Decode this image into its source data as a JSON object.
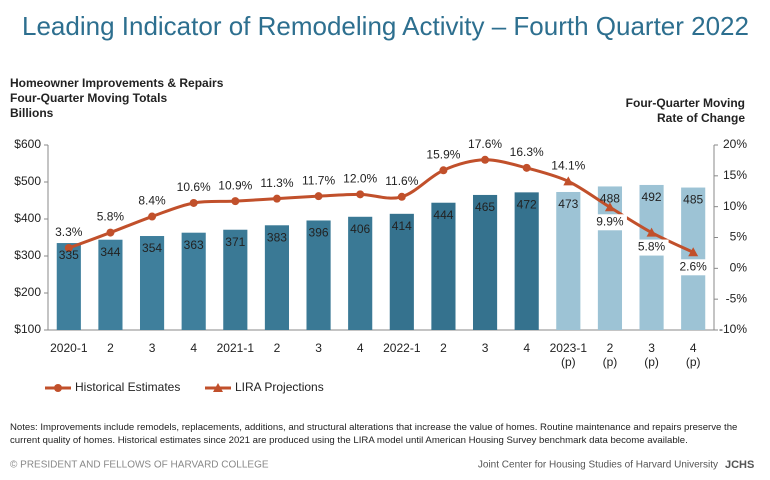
{
  "chart_data": {
    "type": "bar-line",
    "title": "Leading Indicator of Remodeling Activity – Fourth Quarter 2022",
    "ylabel": [
      "Homeowner Improvements & Repairs",
      "Four-Quarter Moving Totals",
      "Billions"
    ],
    "y2label": [
      "Four-Quarter Moving",
      "Rate of Change"
    ],
    "categories": [
      "2020-1",
      "2",
      "3",
      "4",
      "2021-1",
      "2",
      "3",
      "4",
      "2022-1",
      "2",
      "3",
      "4",
      "2023-1\n(p)",
      "2\n(p)",
      "3\n(p)",
      "4\n(p)"
    ],
    "bars": {
      "values": [
        335,
        344,
        354,
        363,
        371,
        383,
        396,
        406,
        414,
        444,
        465,
        472,
        473,
        488,
        492,
        485
      ],
      "colors": [
        "#3f7f9c",
        "#3f7f9c",
        "#3f7f9c",
        "#3f7f9c",
        "#3a7995",
        "#3a7995",
        "#3a7995",
        "#3a7995",
        "#35728e",
        "#35728e",
        "#35728e",
        "#35728e",
        "#9dc3d5",
        "#9dc3d5",
        "#9dc3d5",
        "#9dc3d5"
      ]
    },
    "series": [
      {
        "name": "Historical Estimates",
        "color": "#c1502b",
        "marker": "circle",
        "axis": "y2",
        "values": [
          3.3,
          5.8,
          8.4,
          10.6,
          10.9,
          11.3,
          11.7,
          12.0,
          11.6,
          15.9,
          17.6,
          16.3,
          null,
          null,
          null,
          null
        ],
        "value_labels": [
          "3.3%",
          "5.8%",
          "8.4%",
          "10.6%",
          "10.9%",
          "11.3%",
          "11.7%",
          "12.0%",
          "11.6%",
          "15.9%",
          "17.6%",
          "16.3%",
          null,
          null,
          null,
          null
        ]
      },
      {
        "name": "LIRA Projections",
        "color": "#c1502b",
        "marker": "triangle",
        "axis": "y2",
        "values": [
          null,
          null,
          null,
          null,
          null,
          null,
          null,
          null,
          null,
          null,
          null,
          null,
          14.1,
          9.9,
          5.8,
          2.6
        ],
        "value_labels": [
          null,
          null,
          null,
          null,
          null,
          null,
          null,
          null,
          null,
          null,
          null,
          null,
          "14.1%",
          "9.9%",
          "5.8%",
          "2.6%"
        ]
      }
    ],
    "ylim": [
      100,
      600
    ],
    "yticks": [
      {
        "value": 100,
        "label": "$100"
      },
      {
        "value": 200,
        "label": "$200"
      },
      {
        "value": 300,
        "label": "$300"
      },
      {
        "value": 400,
        "label": "$400"
      },
      {
        "value": 500,
        "label": "$500"
      },
      {
        "value": 600,
        "label": "$600"
      }
    ],
    "y2lim": [
      -10,
      20
    ],
    "y2ticks": [
      {
        "value": -10,
        "label": "-10%"
      },
      {
        "value": -5,
        "label": "-5%"
      },
      {
        "value": 0,
        "label": "0%"
      },
      {
        "value": 5,
        "label": "5%"
      },
      {
        "value": 10,
        "label": "10%"
      },
      {
        "value": 15,
        "label": "15%"
      },
      {
        "value": 20,
        "label": "20%"
      }
    ],
    "grid": false,
    "notes": "Notes: Improvements include remodels, replacements, additions, and structural alterations that increase the value of homes. Routine maintenance and repairs preserve the current quality of homes. Historical estimates since 2021 are produced using the LIRA model until American Housing Survey benchmark data become available.",
    "footer_left": "© PRESIDENT AND FELLOWS OF HARVARD COLLEGE",
    "footer_right": "Joint Center for Housing Studies of Harvard University",
    "logo": "JCHS"
  }
}
